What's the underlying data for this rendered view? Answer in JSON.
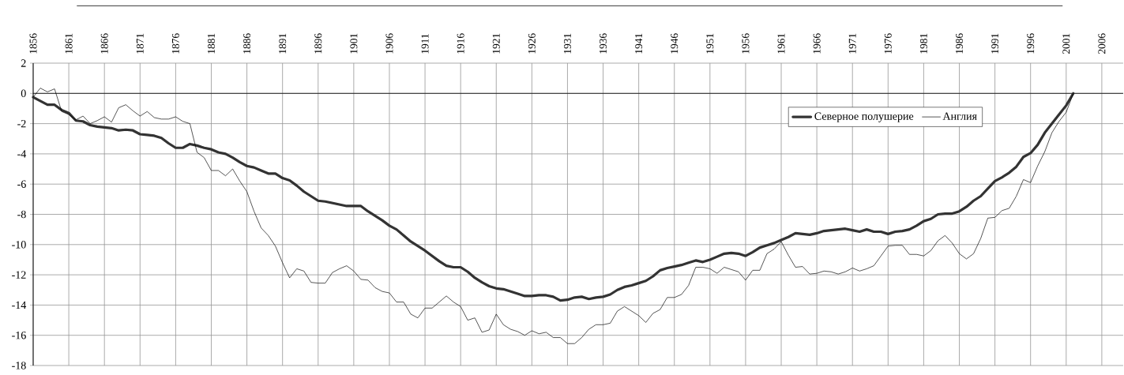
{
  "chart_data": {
    "type": "line",
    "x": [
      1856,
      1857,
      1858,
      1859,
      1860,
      1861,
      1862,
      1863,
      1864,
      1865,
      1866,
      1867,
      1868,
      1869,
      1870,
      1871,
      1872,
      1873,
      1874,
      1875,
      1876,
      1877,
      1878,
      1879,
      1880,
      1881,
      1882,
      1883,
      1884,
      1885,
      1886,
      1887,
      1888,
      1889,
      1890,
      1891,
      1892,
      1893,
      1894,
      1895,
      1896,
      1897,
      1898,
      1899,
      1900,
      1901,
      1902,
      1903,
      1904,
      1905,
      1906,
      1907,
      1908,
      1909,
      1910,
      1911,
      1912,
      1913,
      1914,
      1915,
      1916,
      1917,
      1918,
      1919,
      1920,
      1921,
      1922,
      1923,
      1924,
      1925,
      1926,
      1927,
      1928,
      1929,
      1930,
      1931,
      1932,
      1933,
      1934,
      1935,
      1936,
      1937,
      1938,
      1939,
      1940,
      1941,
      1942,
      1943,
      1944,
      1945,
      1946,
      1947,
      1948,
      1949,
      1950,
      1951,
      1952,
      1953,
      1954,
      1955,
      1956,
      1957,
      1958,
      1959,
      1960,
      1961,
      1962,
      1963,
      1964,
      1965,
      1966,
      1967,
      1968,
      1969,
      1970,
      1971,
      1972,
      1973,
      1974,
      1975,
      1976,
      1977,
      1978,
      1979,
      1980,
      1981,
      1982,
      1983,
      1984,
      1985,
      1986,
      1987,
      1988,
      1989,
      1990,
      1991,
      1992,
      1993,
      1994,
      1995,
      1996,
      1997,
      1998,
      1999,
      2000,
      2001,
      2002
    ],
    "series": [
      {
        "name": "Северное полушерие",
        "color": "#333333",
        "values": [
          -0.25,
          -0.5,
          -0.75,
          -0.75,
          -1.1,
          -1.3,
          -1.8,
          -1.85,
          -2.1,
          -2.2,
          -2.25,
          -2.3,
          -2.45,
          -2.4,
          -2.45,
          -2.7,
          -2.75,
          -2.8,
          -2.95,
          -3.3,
          -3.6,
          -3.6,
          -3.35,
          -3.45,
          -3.6,
          -3.7,
          -3.9,
          -4.0,
          -4.25,
          -4.55,
          -4.8,
          -4.9,
          -5.1,
          -5.3,
          -5.3,
          -5.6,
          -5.75,
          -6.1,
          -6.5,
          -6.8,
          -7.1,
          -7.15,
          -7.25,
          -7.35,
          -7.45,
          -7.45,
          -7.45,
          -7.8,
          -8.1,
          -8.4,
          -8.75,
          -9.0,
          -9.4,
          -9.8,
          -10.1,
          -10.4,
          -10.75,
          -11.1,
          -11.4,
          -11.5,
          -11.5,
          -11.8,
          -12.2,
          -12.5,
          -12.75,
          -12.9,
          -12.95,
          -13.1,
          -13.25,
          -13.4,
          -13.4,
          -13.35,
          -13.35,
          -13.45,
          -13.7,
          -13.65,
          -13.5,
          -13.45,
          -13.6,
          -13.5,
          -13.45,
          -13.3,
          -13.0,
          -12.8,
          -12.7,
          -12.55,
          -12.4,
          -12.1,
          -11.7,
          -11.55,
          -11.45,
          -11.35,
          -11.2,
          -11.05,
          -11.15,
          -11.0,
          -10.8,
          -10.6,
          -10.55,
          -10.6,
          -10.75,
          -10.5,
          -10.2,
          -10.05,
          -9.9,
          -9.7,
          -9.5,
          -9.25,
          -9.3,
          -9.35,
          -9.25,
          -9.1,
          -9.05,
          -9.0,
          -8.95,
          -9.05,
          -9.15,
          -9.0,
          -9.15,
          -9.15,
          -9.3,
          -9.15,
          -9.1,
          -9.0,
          -8.75,
          -8.45,
          -8.3,
          -8.0,
          -7.95,
          -7.95,
          -7.8,
          -7.5,
          -7.1,
          -6.8,
          -6.3,
          -5.8,
          -5.55,
          -5.25,
          -4.85,
          -4.2,
          -3.95,
          -3.4,
          -2.6,
          -2.0,
          -1.4,
          -0.8,
          0
        ]
      },
      {
        "name": "Англия",
        "color": "#000000",
        "values": [
          -0.25,
          0.35,
          0.1,
          0.3,
          -1.2,
          -1.4,
          -1.75,
          -1.5,
          -2.0,
          -1.8,
          -1.55,
          -1.9,
          -0.95,
          -0.75,
          -1.15,
          -1.5,
          -1.2,
          -1.6,
          -1.7,
          -1.7,
          -1.55,
          -1.85,
          -2.0,
          -3.9,
          -4.25,
          -5.1,
          -5.1,
          -5.45,
          -5.0,
          -5.8,
          -6.5,
          -7.8,
          -8.9,
          -9.4,
          -10.1,
          -11.2,
          -12.2,
          -11.6,
          -11.75,
          -12.5,
          -12.55,
          -12.55,
          -11.85,
          -11.6,
          -11.4,
          -11.75,
          -12.3,
          -12.35,
          -12.85,
          -13.1,
          -13.2,
          -13.8,
          -13.8,
          -14.6,
          -14.85,
          -14.2,
          -14.2,
          -13.8,
          -13.4,
          -13.8,
          -14.1,
          -15.0,
          -14.85,
          -15.8,
          -15.65,
          -14.6,
          -15.3,
          -15.6,
          -15.75,
          -16.0,
          -15.7,
          -15.9,
          -15.8,
          -16.15,
          -16.15,
          -16.55,
          -16.55,
          -16.15,
          -15.6,
          -15.3,
          -15.3,
          -15.2,
          -14.4,
          -14.1,
          -14.4,
          -14.7,
          -15.15,
          -14.55,
          -14.3,
          -13.5,
          -13.5,
          -13.3,
          -12.7,
          -11.5,
          -11.5,
          -11.6,
          -11.9,
          -11.5,
          -11.65,
          -11.8,
          -12.35,
          -11.7,
          -11.7,
          -10.6,
          -10.3,
          -9.8,
          -10.7,
          -11.5,
          -11.45,
          -11.95,
          -11.9,
          -11.75,
          -11.8,
          -11.95,
          -11.8,
          -11.55,
          -11.75,
          -11.6,
          -11.4,
          -10.75,
          -10.1,
          -10.05,
          -10.05,
          -10.65,
          -10.65,
          -10.75,
          -10.4,
          -9.75,
          -9.4,
          -9.9,
          -10.6,
          -10.95,
          -10.6,
          -9.6,
          -8.25,
          -8.2,
          -7.75,
          -7.6,
          -6.8,
          -5.7,
          -5.9,
          -4.8,
          -3.85,
          -2.6,
          -1.85,
          -1.25,
          0
        ]
      }
    ],
    "xlim": [
      1856,
      2009
    ],
    "xticks": [
      1856,
      1861,
      1866,
      1871,
      1876,
      1881,
      1886,
      1891,
      1896,
      1901,
      1906,
      1911,
      1916,
      1921,
      1926,
      1931,
      1936,
      1941,
      1946,
      1951,
      1956,
      1961,
      1966,
      1971,
      1976,
      1981,
      1986,
      1991,
      1996,
      2001,
      2006
    ],
    "ylim": [
      -18,
      2
    ],
    "yticks": [
      -18,
      -16,
      -14,
      -12,
      -10,
      -8,
      -6,
      -4,
      -2,
      0,
      2
    ],
    "ref_lines": [
      {
        "axis": "y",
        "value": 0,
        "color": "#000000"
      }
    ],
    "grid": true,
    "legend": "top right",
    "marker": "none",
    "line_style": "solid"
  }
}
